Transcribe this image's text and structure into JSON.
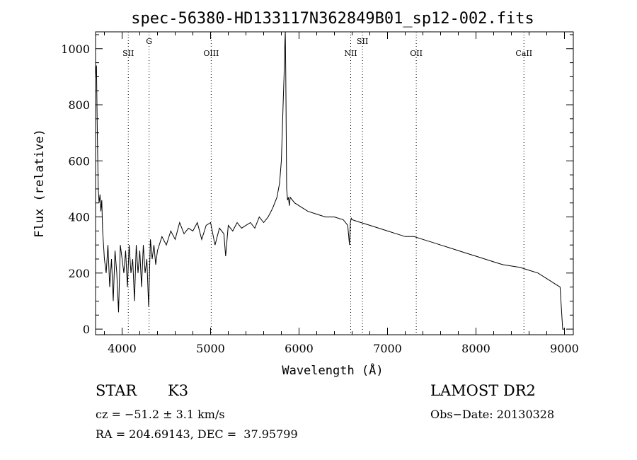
{
  "chart_data": {
    "type": "line",
    "title": "spec-56380-HD133117N362849B01_sp12-002.fits",
    "xlabel": "Wavelength (Å)",
    "ylabel": "Flux (relative)",
    "xlim": [
      3700,
      9100
    ],
    "ylim": [
      -20,
      1060
    ],
    "x_ticks": [
      4000,
      5000,
      6000,
      7000,
      8000,
      9000
    ],
    "y_ticks": [
      0,
      200,
      400,
      600,
      800,
      1000
    ],
    "grid": false,
    "series": [
      {
        "x": [
          3700,
          3710,
          3720,
          3730,
          3740,
          3750,
          3760,
          3770,
          3780,
          3790,
          3800,
          3820,
          3840,
          3860,
          3880,
          3900,
          3920,
          3940,
          3960,
          3980,
          4000,
          4020,
          4040,
          4060,
          4080,
          4100,
          4120,
          4140,
          4160,
          4180,
          4200,
          4220,
          4240,
          4260,
          4280,
          4300,
          4320,
          4340,
          4360,
          4380,
          4400,
          4450,
          4500,
          4550,
          4600,
          4650,
          4700,
          4750,
          4800,
          4850,
          4900,
          4950,
          5000,
          5050,
          5100,
          5150,
          5170,
          5200,
          5250,
          5300,
          5350,
          5400,
          5450,
          5500,
          5550,
          5600,
          5650,
          5700,
          5750,
          5780,
          5800,
          5810,
          5820,
          5830,
          5840,
          5845,
          5850,
          5855,
          5860,
          5870,
          5880,
          5890,
          5900,
          5950,
          6000,
          6100,
          6200,
          6300,
          6400,
          6500,
          6550,
          6570,
          6580,
          6590,
          6600,
          6700,
          6800,
          6900,
          7000,
          7100,
          7200,
          7300,
          7400,
          7500,
          7600,
          7700,
          7800,
          7900,
          8000,
          8100,
          8200,
          8300,
          8400,
          8500,
          8600,
          8700,
          8800,
          8850,
          8900,
          8950,
          8980,
          9000
        ],
        "y": [
          900,
          940,
          700,
          500,
          450,
          480,
          420,
          460,
          350,
          300,
          250,
          200,
          300,
          150,
          250,
          100,
          280,
          200,
          60,
          300,
          250,
          200,
          280,
          150,
          300,
          200,
          250,
          100,
          300,
          200,
          280,
          150,
          300,
          200,
          250,
          80,
          320,
          250,
          300,
          230,
          280,
          330,
          300,
          350,
          320,
          380,
          340,
          360,
          350,
          380,
          320,
          370,
          380,
          300,
          360,
          340,
          260,
          370,
          350,
          380,
          360,
          370,
          380,
          360,
          400,
          380,
          400,
          430,
          470,
          520,
          600,
          700,
          800,
          900,
          1020,
          1060,
          900,
          700,
          500,
          460,
          470,
          440,
          470,
          450,
          440,
          420,
          410,
          400,
          400,
          390,
          370,
          300,
          380,
          395,
          390,
          380,
          370,
          360,
          350,
          340,
          330,
          330,
          320,
          310,
          300,
          290,
          280,
          270,
          260,
          250,
          240,
          230,
          225,
          220,
          210,
          200,
          180,
          170,
          160,
          150,
          0,
          0
        ]
      }
    ],
    "annotations": [
      {
        "label": "SII",
        "x": 4070,
        "level": "lower"
      },
      {
        "label": "G",
        "x": 4305,
        "level": "upper"
      },
      {
        "label": "OIII",
        "x": 5007,
        "level": "lower"
      },
      {
        "label": "NII",
        "x": 6584,
        "level": "lower"
      },
      {
        "label": "SII",
        "x": 6717,
        "level": "upper"
      },
      {
        "label": "OII",
        "x": 7325,
        "level": "lower"
      },
      {
        "label": "CaII",
        "x": 8542,
        "level": "lower"
      }
    ]
  },
  "info": {
    "class_label": "STAR",
    "subclass": "K3",
    "survey": "LAMOST DR2",
    "cz": "cz = −51.2 ± 3.1 km/s",
    "obs_date": "Obs−Date: 20130328",
    "coords": "RA = 204.69143, DEC =  37.95799"
  }
}
